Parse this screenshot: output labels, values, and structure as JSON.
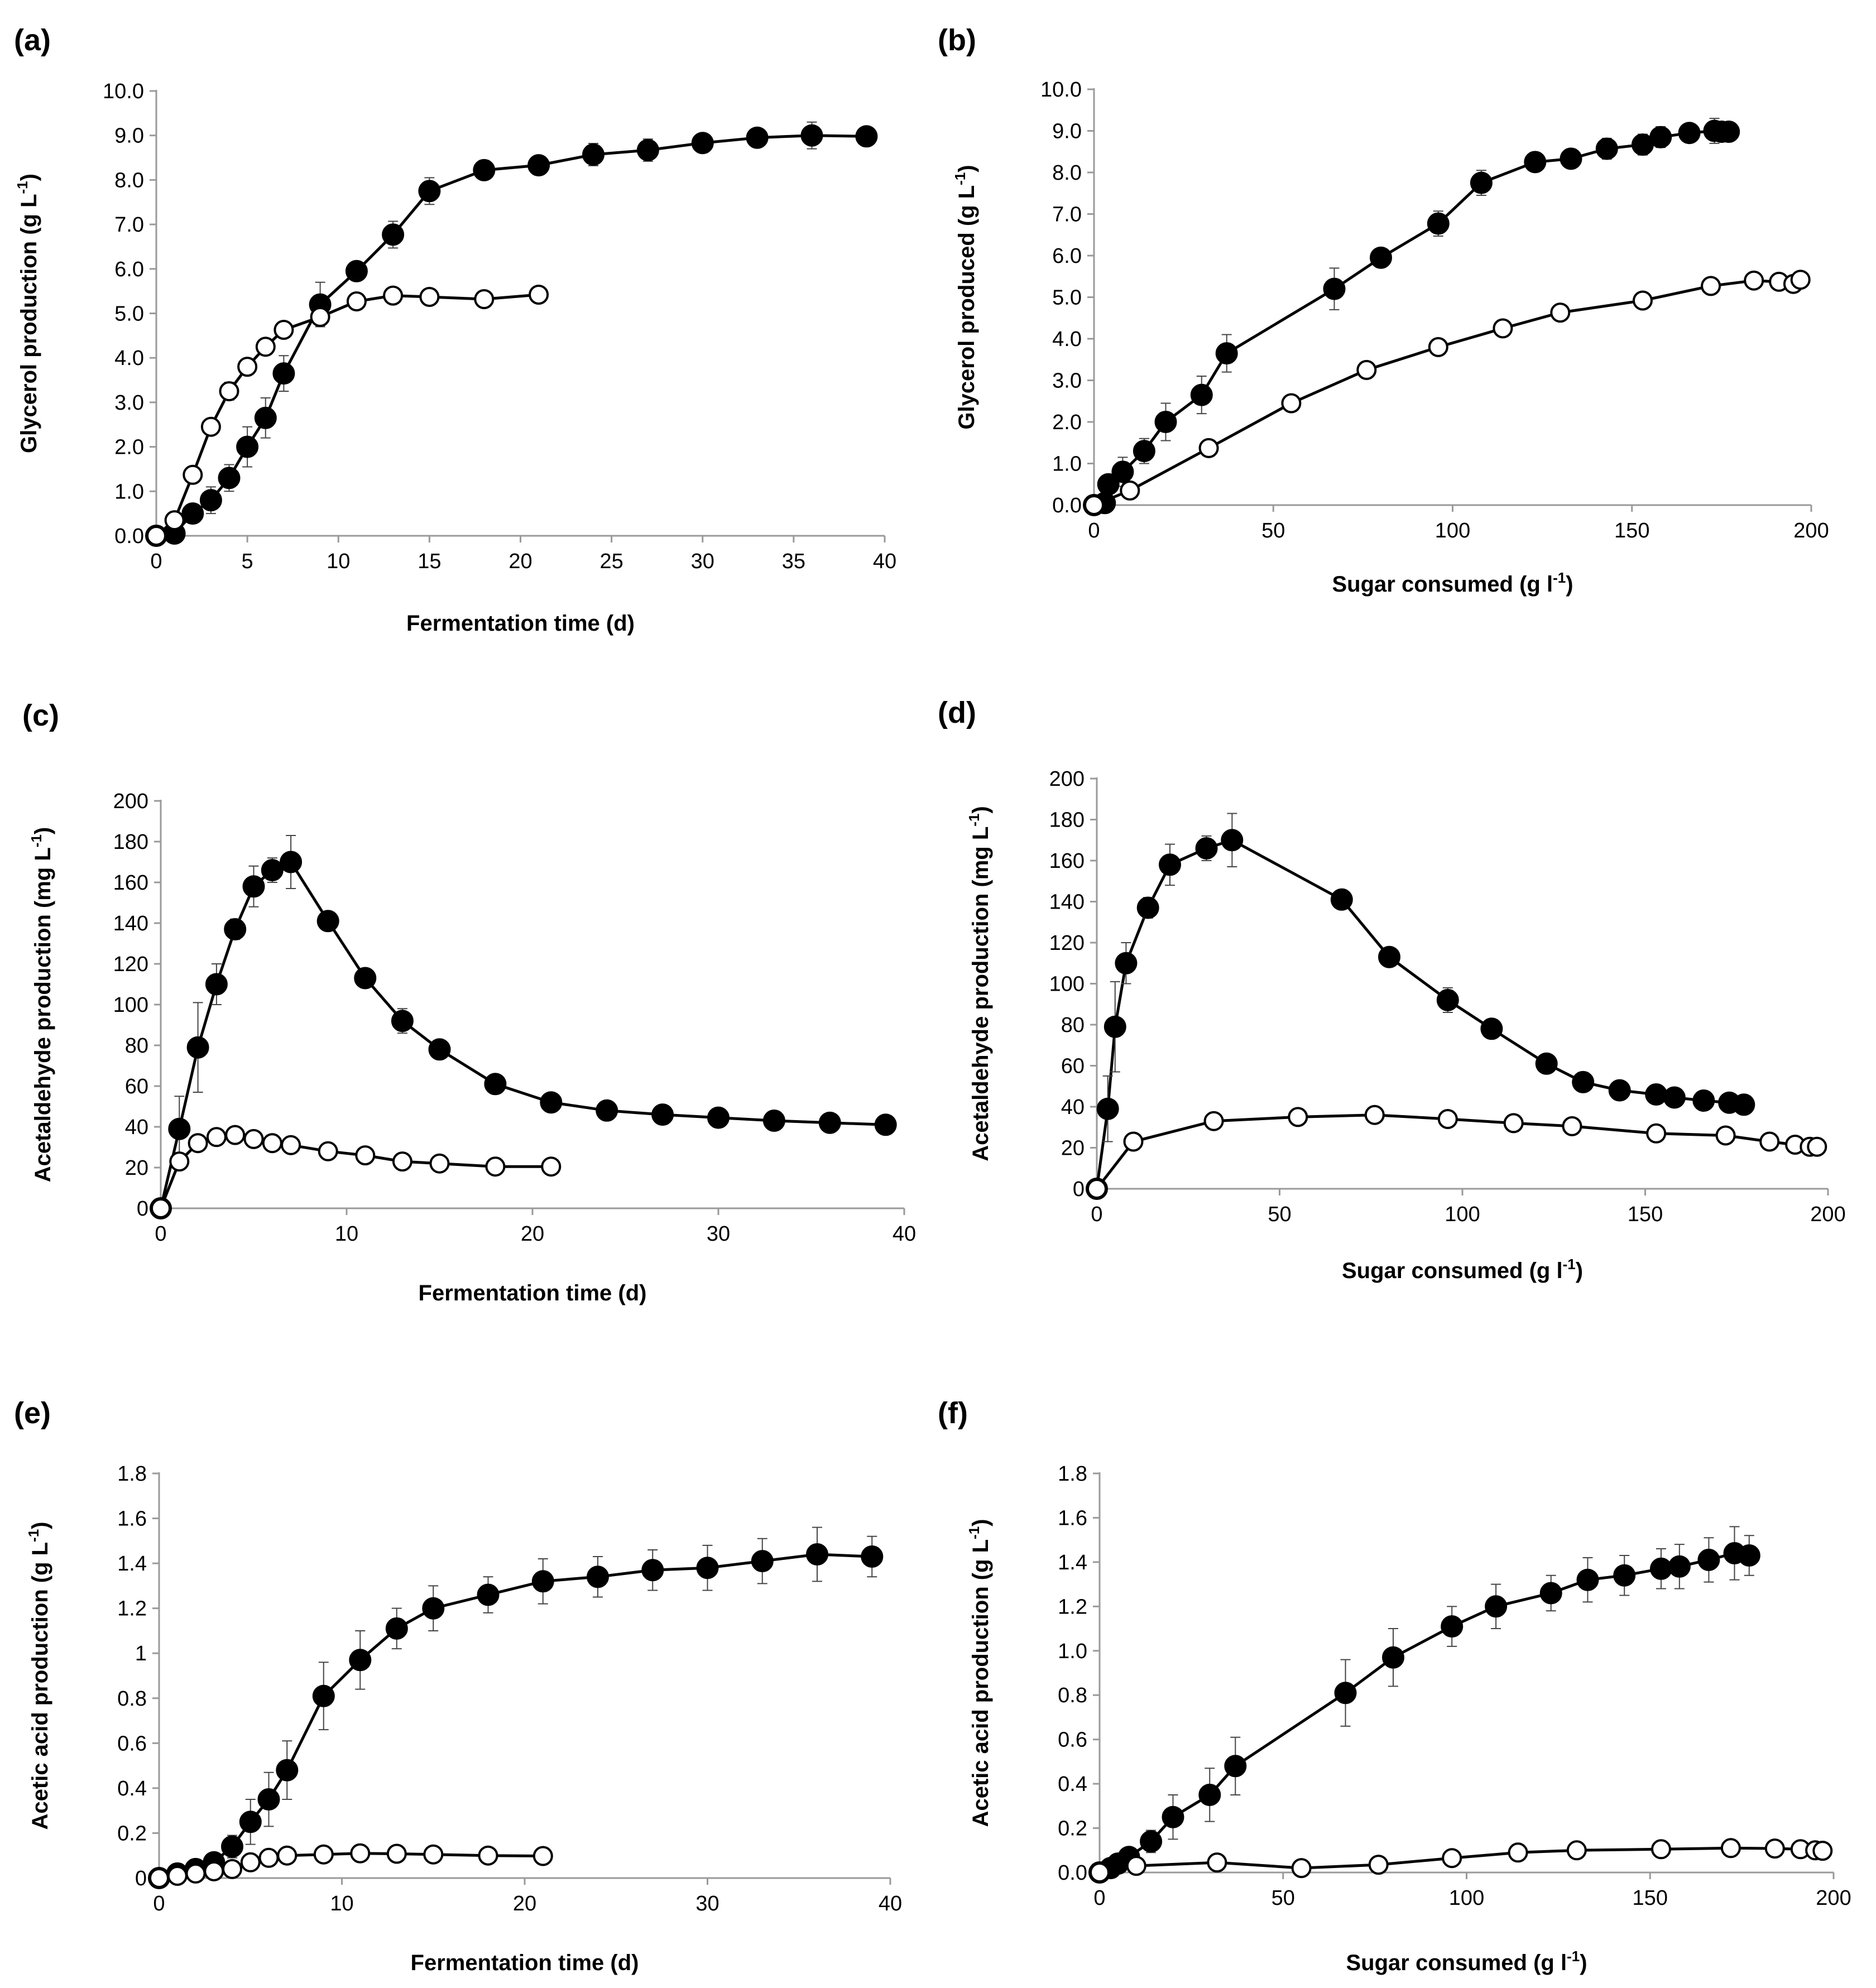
{
  "chart_data": [
    {
      "panel": "(a)",
      "type": "line",
      "xlabel": "Fermentation time (d)",
      "ylabel": {
        "main": "Glycerol production (g L",
        "sup": "-1",
        "end": ")"
      },
      "xlim": [
        0,
        40
      ],
      "ylim": [
        0,
        10
      ],
      "xticks": [
        "0",
        "5",
        "10",
        "15",
        "20",
        "25",
        "30",
        "35",
        "40"
      ],
      "yticks": [
        "0.0",
        "1.0",
        "2.0",
        "3.0",
        "4.0",
        "5.0",
        "6.0",
        "7.0",
        "8.0",
        "9.0",
        "10.0"
      ],
      "series": [
        {
          "name": "filled",
          "marker": "filled",
          "x": [
            0,
            1,
            2,
            3,
            4,
            5,
            6,
            7,
            9,
            11,
            13,
            15,
            18,
            21,
            24,
            27,
            30,
            33,
            36,
            39
          ],
          "y": [
            0,
            0.05,
            0.5,
            0.8,
            1.3,
            2.0,
            2.65,
            3.65,
            5.2,
            5.95,
            6.77,
            7.75,
            8.22,
            8.33,
            8.57,
            8.67,
            8.83,
            8.95,
            9.0,
            8.98
          ],
          "err": [
            0,
            0,
            0.15,
            0.3,
            0.3,
            0.45,
            0.45,
            0.4,
            0.5,
            0.1,
            0.3,
            0.3,
            0.1,
            0.1,
            0.25,
            0.25,
            0.2,
            0.1,
            0.3,
            0.2
          ]
        },
        {
          "name": "open",
          "marker": "open",
          "x": [
            0,
            1,
            2,
            3,
            4,
            5,
            6,
            7,
            9,
            11,
            13,
            15,
            18,
            21
          ],
          "y": [
            0,
            0.35,
            1.37,
            2.45,
            3.25,
            3.8,
            4.25,
            4.63,
            4.92,
            5.27,
            5.4,
            5.37,
            5.32,
            5.42
          ],
          "err": [
            0,
            0,
            0,
            0,
            0.2,
            0.15,
            0.15,
            0.1,
            0.1,
            0.1,
            0.1,
            0.05,
            0.05,
            0.1
          ]
        }
      ]
    },
    {
      "panel": "(b)",
      "type": "line",
      "xlabel": {
        "main": "Sugar consumed (g l",
        "sup": "-1",
        "end": ")"
      },
      "ylabel": {
        "main": "Glycerol produced (g L",
        "sup": "-1",
        "end": ")"
      },
      "xlim": [
        0,
        200
      ],
      "ylim": [
        0,
        10
      ],
      "xticks": [
        "0",
        "50",
        "100",
        "150",
        "200"
      ],
      "yticks": [
        "0.0",
        "1.0",
        "2.0",
        "3.0",
        "4.0",
        "5.0",
        "6.0",
        "7.0",
        "8.0",
        "9.0",
        "10.0"
      ],
      "series": [
        {
          "name": "filled",
          "marker": "filled",
          "x": [
            0,
            3,
            4,
            8,
            14,
            20,
            30,
            37,
            67,
            80,
            96,
            108,
            123,
            133,
            143,
            153,
            158,
            166,
            173,
            175,
            177
          ],
          "y": [
            0,
            0.05,
            0.5,
            0.8,
            1.3,
            2.0,
            2.65,
            3.65,
            5.2,
            5.95,
            6.77,
            7.75,
            8.25,
            8.33,
            8.57,
            8.67,
            8.85,
            8.95,
            9.0,
            8.98,
            8.98
          ],
          "err": [
            0,
            0,
            0.1,
            0.35,
            0.3,
            0.45,
            0.45,
            0.45,
            0.5,
            0.1,
            0.3,
            0.3,
            0.1,
            0.1,
            0.25,
            0.25,
            0.25,
            0.1,
            0.3,
            0.2,
            0.1
          ]
        },
        {
          "name": "open",
          "marker": "open",
          "x": [
            0,
            10,
            32,
            55,
            76,
            96,
            114,
            130,
            153,
            172,
            184,
            191,
            195,
            197
          ],
          "y": [
            0,
            0.35,
            1.37,
            2.45,
            3.25,
            3.8,
            4.25,
            4.63,
            4.92,
            5.27,
            5.4,
            5.37,
            5.32,
            5.42
          ],
          "err": [
            0,
            0,
            0,
            0,
            0.2,
            0.1,
            0.1,
            0.1,
            0.05,
            0.1,
            0.05,
            0.05,
            0.05,
            0.1
          ]
        }
      ]
    },
    {
      "panel": "(c)",
      "type": "line",
      "xlabel": "Fermentation time (d)",
      "ylabel": {
        "main": "Acetaldehyde production (mg L",
        "sup": "-1",
        "end": ")"
      },
      "xlim": [
        0,
        40
      ],
      "ylim": [
        0,
        200
      ],
      "xticks": [
        "0",
        "10",
        "20",
        "30",
        "40"
      ],
      "yticks": [
        "0",
        "20",
        "40",
        "60",
        "80",
        "100",
        "120",
        "140",
        "160",
        "180",
        "200"
      ],
      "series": [
        {
          "name": "filled",
          "marker": "filled",
          "x": [
            0,
            1,
            2,
            3,
            4,
            5,
            6,
            7,
            9,
            11,
            13,
            15,
            18,
            21,
            24,
            27,
            30,
            33,
            36,
            39
          ],
          "y": [
            0,
            39,
            79,
            110,
            137,
            158,
            166,
            170,
            141,
            113,
            92,
            78,
            61,
            52,
            48,
            46,
            44.5,
            43,
            42,
            41
          ],
          "err": [
            0,
            16,
            22,
            10,
            5,
            10,
            6,
            13,
            3,
            4,
            6,
            3,
            3,
            2,
            2,
            2,
            2,
            2,
            2,
            2
          ]
        },
        {
          "name": "open",
          "marker": "open",
          "x": [
            0,
            1,
            2,
            3,
            4,
            5,
            6,
            7,
            9,
            11,
            13,
            15,
            18,
            21
          ],
          "y": [
            0,
            23,
            32,
            35,
            36,
            34,
            32,
            31,
            28,
            26,
            23,
            22,
            20.5,
            20.5
          ],
          "err": [
            0,
            3,
            3,
            3,
            3,
            2,
            2,
            2,
            2,
            2,
            2,
            2,
            2,
            2
          ]
        }
      ]
    },
    {
      "panel": "(d)",
      "type": "line",
      "xlabel": {
        "main": "Sugar consumed (g l",
        "sup": "-1",
        "end": ")"
      },
      "ylabel": {
        "main": "Acetaldehyde production (mg L",
        "sup": "-1",
        "end": ")"
      },
      "xlim": [
        0,
        200
      ],
      "ylim": [
        0,
        200
      ],
      "xticks": [
        "0",
        "50",
        "100",
        "150",
        "200"
      ],
      "yticks": [
        "0",
        "20",
        "40",
        "60",
        "80",
        "100",
        "120",
        "140",
        "160",
        "180",
        "200"
      ],
      "series": [
        {
          "name": "filled",
          "marker": "filled",
          "x": [
            0,
            3,
            5,
            8,
            14,
            20,
            30,
            37,
            67,
            80,
            96,
            108,
            123,
            133,
            143,
            153,
            158,
            166,
            173,
            177
          ],
          "y": [
            0,
            39,
            79,
            110,
            137,
            158,
            166,
            170,
            141,
            113,
            92,
            78,
            61,
            52,
            48,
            46,
            44.5,
            43,
            42,
            41
          ],
          "err": [
            0,
            16,
            22,
            10,
            5,
            10,
            6,
            13,
            3,
            4,
            6,
            3,
            3,
            2,
            2,
            2,
            2,
            2,
            2,
            2
          ]
        },
        {
          "name": "open",
          "marker": "open",
          "x": [
            0,
            10,
            32,
            55,
            76,
            96,
            114,
            130,
            153,
            172,
            184,
            191,
            195,
            197
          ],
          "y": [
            0,
            23,
            33,
            35,
            36,
            34,
            32,
            30.5,
            27,
            26,
            23,
            21.5,
            20.5,
            20.5
          ],
          "err": [
            0,
            2,
            2,
            2,
            2,
            2,
            2,
            2,
            2,
            2,
            2,
            2,
            2,
            2
          ]
        }
      ]
    },
    {
      "panel": "(e)",
      "type": "line",
      "xlabel": "Fermentation time (d)",
      "ylabel": {
        "main": "Acetic acid production (g L",
        "sup": "-1",
        "end": ")"
      },
      "xlim": [
        0,
        40
      ],
      "ylim": [
        0,
        1.8
      ],
      "xticks": [
        "0",
        "10",
        "20",
        "30",
        "40"
      ],
      "yticks": [
        "0",
        "0.2",
        "0.4",
        "0.6",
        "0.8",
        "1",
        "1.2",
        "1.4",
        "1.6",
        "1.8"
      ],
      "series": [
        {
          "name": "filled",
          "marker": "filled",
          "x": [
            0,
            1,
            2,
            3,
            4,
            5,
            6,
            7,
            9,
            11,
            13,
            15,
            18,
            21,
            24,
            27,
            30,
            33,
            36,
            39
          ],
          "y": [
            0,
            0.02,
            0.04,
            0.07,
            0.14,
            0.25,
            0.35,
            0.48,
            0.81,
            0.97,
            1.11,
            1.2,
            1.26,
            1.32,
            1.34,
            1.37,
            1.38,
            1.41,
            1.44,
            1.43
          ],
          "err": [
            0,
            0,
            0,
            0.02,
            0.05,
            0.1,
            0.12,
            0.13,
            0.15,
            0.13,
            0.09,
            0.1,
            0.08,
            0.1,
            0.09,
            0.09,
            0.1,
            0.1,
            0.12,
            0.09
          ]
        },
        {
          "name": "open",
          "marker": "open",
          "x": [
            0,
            1,
            2,
            3,
            4,
            5,
            6,
            7,
            9,
            11,
            13,
            15,
            18,
            21
          ],
          "y": [
            0,
            0.01,
            0.02,
            0.03,
            0.04,
            0.07,
            0.09,
            0.1,
            0.105,
            0.11,
            0.108,
            0.105,
            0.1,
            0.098
          ],
          "err": [
            0,
            0,
            0,
            0,
            0,
            0.01,
            0.01,
            0.01,
            0.01,
            0.01,
            0.01,
            0.01,
            0.01,
            0.01
          ]
        }
      ]
    },
    {
      "panel": "(f)",
      "type": "line",
      "xlabel": {
        "main": "Sugar consumed (g l",
        "sup": "-1",
        "end": ")"
      },
      "ylabel": {
        "main": "Acetic acid production (g L",
        "sup": "-1",
        "end": ")"
      },
      "xlim": [
        0,
        200
      ],
      "ylim": [
        0,
        1.8
      ],
      "xticks": [
        "0",
        "50",
        "100",
        "150",
        "200"
      ],
      "yticks": [
        "0.0",
        "0.2",
        "0.4",
        "0.6",
        "0.8",
        "1.0",
        "1.2",
        "1.4",
        "1.6",
        "1.8"
      ],
      "series": [
        {
          "name": "filled",
          "marker": "filled",
          "x": [
            0,
            3,
            5,
            8,
            14,
            20,
            30,
            37,
            67,
            80,
            96,
            108,
            123,
            133,
            143,
            153,
            158,
            166,
            173,
            177
          ],
          "y": [
            0,
            0.02,
            0.04,
            0.07,
            0.14,
            0.25,
            0.35,
            0.48,
            0.81,
            0.97,
            1.11,
            1.2,
            1.26,
            1.32,
            1.34,
            1.37,
            1.38,
            1.41,
            1.44,
            1.43
          ],
          "err": [
            0,
            0,
            0,
            0.02,
            0.05,
            0.1,
            0.12,
            0.13,
            0.15,
            0.13,
            0.09,
            0.1,
            0.08,
            0.1,
            0.09,
            0.09,
            0.1,
            0.1,
            0.12,
            0.09
          ]
        },
        {
          "name": "open",
          "marker": "open",
          "x": [
            0,
            10,
            32,
            55,
            76,
            96,
            114,
            130,
            153,
            172,
            184,
            191,
            195,
            197
          ],
          "y": [
            0,
            0.03,
            0.045,
            0.02,
            0.035,
            0.065,
            0.09,
            0.1,
            0.105,
            0.11,
            0.108,
            0.105,
            0.1,
            0.098
          ],
          "err": [
            0,
            0,
            0,
            0,
            0,
            0,
            0.01,
            0.01,
            0.01,
            0.01,
            0.01,
            0.01,
            0.01,
            0.01
          ]
        }
      ]
    }
  ]
}
